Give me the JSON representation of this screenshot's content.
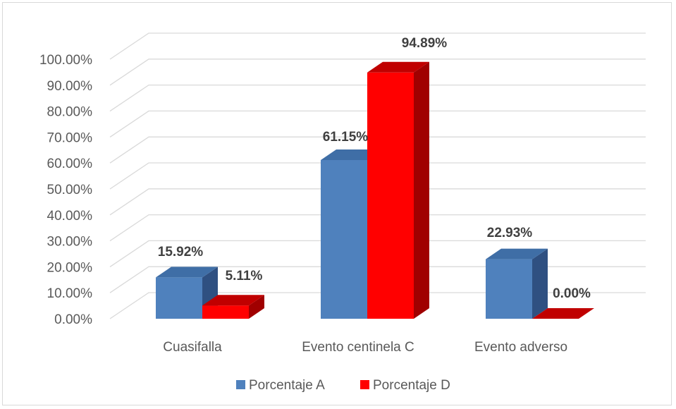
{
  "chart_data": {
    "type": "bar",
    "style": "3d-clustered-column",
    "categories": [
      "Cuasifalla",
      "Evento centinela C",
      "Evento adverso"
    ],
    "series": [
      {
        "name": "Porcentaje A",
        "values": [
          15.92,
          61.15,
          22.93
        ],
        "labels": [
          "15.92%",
          "61.15%",
          "22.93%"
        ]
      },
      {
        "name": "Porcentaje D",
        "values": [
          5.11,
          94.89,
          0.0
        ],
        "labels": [
          "5.11%",
          "94.89%",
          "0.00%"
        ]
      }
    ],
    "ylim": [
      0,
      100
    ],
    "yticks": [
      "0.00%",
      "10.00%",
      "20.00%",
      "30.00%",
      "40.00%",
      "50.00%",
      "60.00%",
      "70.00%",
      "80.00%",
      "90.00%",
      "100.00%"
    ],
    "grid": true,
    "legend": "bottom",
    "colors": {
      "Porcentaje A": {
        "front": "#4f81bd",
        "top": "#3f6ea6",
        "side": "#2f5081"
      },
      "Porcentaje D": {
        "front": "#ff0000",
        "top": "#c00000",
        "side": "#a00000"
      },
      "grid": "#d9d9d9"
    }
  }
}
